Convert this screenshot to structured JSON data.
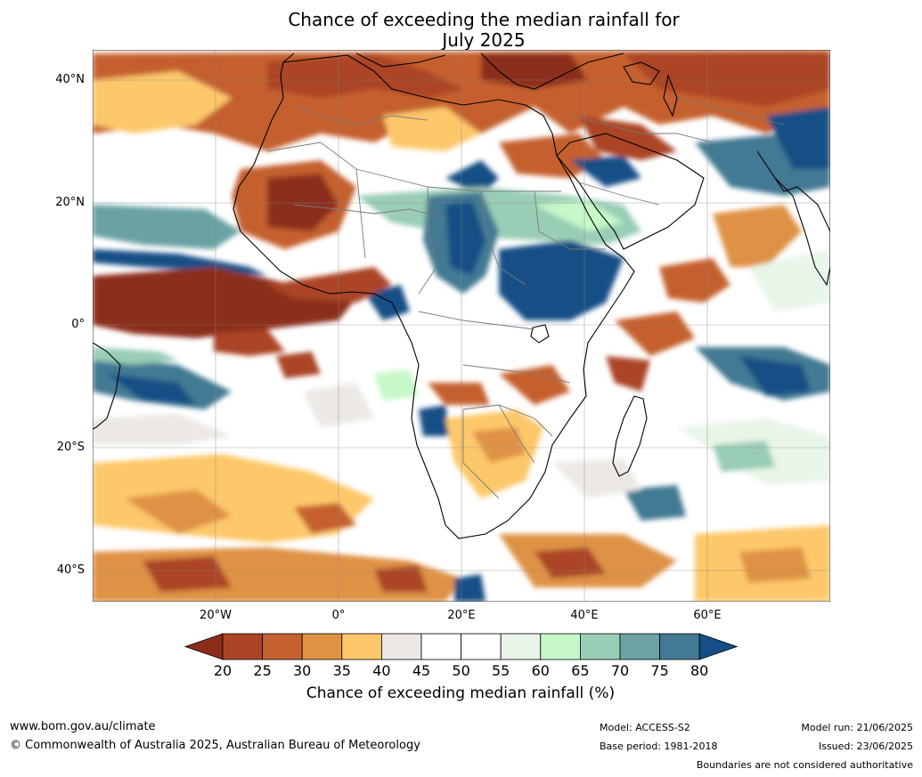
{
  "title_line1": "Chance of exceeding the median rainfall for",
  "title_line2": "July 2025",
  "map": {
    "lat_labels": [
      "40°N",
      "20°N",
      "0°",
      "20°S",
      "40°S"
    ],
    "lon_labels": [
      "20°W",
      "0°",
      "20°E",
      "40°E",
      "60°E"
    ],
    "lat_values": [
      40,
      20,
      0,
      -20,
      -40
    ],
    "lon_values": [
      -20,
      0,
      20,
      40,
      60
    ],
    "extent": {
      "lon_min": -40,
      "lon_max": 80,
      "lat_min": -45,
      "lat_max": 45
    }
  },
  "colorbar": {
    "title": "Chance of exceeding median rainfall (%)",
    "ticks": [
      "20",
      "25",
      "30",
      "35",
      "40",
      "45",
      "50",
      "55",
      "60",
      "65",
      "70",
      "75",
      "80"
    ],
    "colors": [
      "#8c2d1c",
      "#ab4525",
      "#c5612f",
      "#df9244",
      "#fdc86a",
      "#ece9e4",
      "#ffffff",
      "#ffffff",
      "#e8f5e8",
      "#c6f8c8",
      "#99cdb6",
      "#6ba2a4",
      "#437993",
      "#154f86"
    ]
  },
  "footer": {
    "website": "www.bom.gov.au/climate",
    "copyright": "© Commonwealth of Australia 2025, Australian Bureau of Meteorology",
    "model": "Model: ACCESS-S2",
    "base_period": "Base period: 1981-2018",
    "model_run": "Model run: 21/06/2025",
    "issued": "Issued: 23/06/2025",
    "boundaries": "Boundaries are not considered authoritative"
  }
}
